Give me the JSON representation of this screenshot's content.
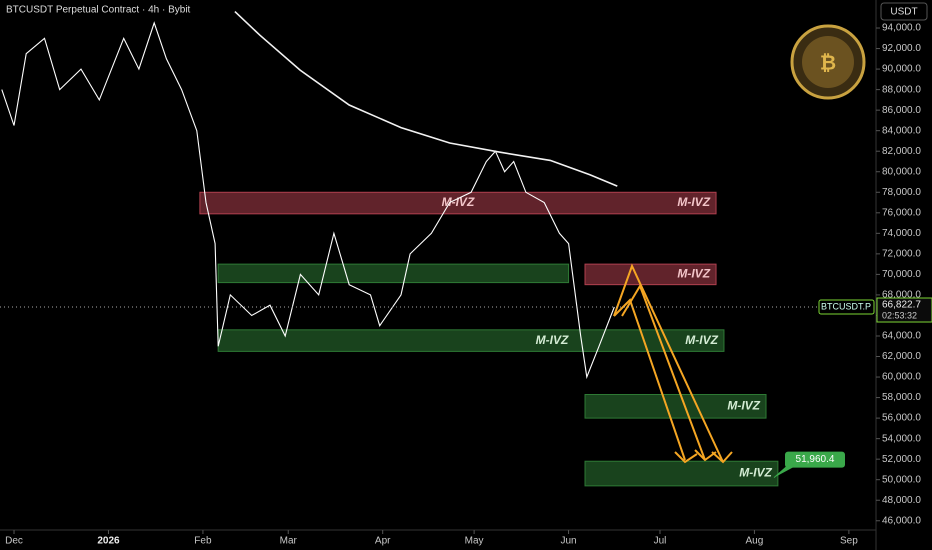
{
  "chart_data": {
    "type": "line",
    "title": "BTCUSDT Perpetual Contract · 4h · Bybit",
    "currency": "USDT",
    "xlim": [
      -4.6,
      282.9
    ],
    "ylim": [
      45100,
      96730
    ],
    "xticks": [
      {
        "value": 0,
        "label": "Dec"
      },
      {
        "value": 31,
        "label": "2026"
      },
      {
        "value": 62,
        "label": "Feb"
      },
      {
        "value": 90,
        "label": "Mar"
      },
      {
        "value": 121,
        "label": "Apr"
      },
      {
        "value": 151,
        "label": "May"
      },
      {
        "value": 182,
        "label": "Jun"
      },
      {
        "value": 212,
        "label": "Jul"
      },
      {
        "value": 243,
        "label": "Aug"
      },
      {
        "value": 274,
        "label": "Sep"
      }
    ],
    "yticks": [
      {
        "value": 46000,
        "label": "46,000.0"
      },
      {
        "value": 48000,
        "label": "48,000.0"
      },
      {
        "value": 50000,
        "label": "50,000.0"
      },
      {
        "value": 52000,
        "label": "52,000.0"
      },
      {
        "value": 54000,
        "label": "54,000.0"
      },
      {
        "value": 56000,
        "label": "56,000.0"
      },
      {
        "value": 58000,
        "label": "58,000.0"
      },
      {
        "value": 60000,
        "label": "60,000.0"
      },
      {
        "value": 62000,
        "label": "62,000.0"
      },
      {
        "value": 64000,
        "label": "64,000.0"
      },
      {
        "value": 66000,
        "label": "66,000.0"
      },
      {
        "value": 68000,
        "label": "68,000.0"
      },
      {
        "value": 70000,
        "label": "70,000.0"
      },
      {
        "value": 72000,
        "label": "72,000.0"
      },
      {
        "value": 74000,
        "label": "74,000.0"
      },
      {
        "value": 76000,
        "label": "76,000.0"
      },
      {
        "value": 78000,
        "label": "78,000.0"
      },
      {
        "value": 80000,
        "label": "80,000.0"
      },
      {
        "value": 82000,
        "label": "82,000.0"
      },
      {
        "value": 84000,
        "label": "84,000.0"
      },
      {
        "value": 86000,
        "label": "86,000.0"
      },
      {
        "value": 88000,
        "label": "88,000.0"
      },
      {
        "value": 90000,
        "label": "90,000.0"
      },
      {
        "value": 92000,
        "label": "92,000.0"
      },
      {
        "value": 94000,
        "label": "94,000.0"
      }
    ],
    "series": [
      {
        "name": "BTCUSDT.P",
        "color": "#ffffff",
        "x": [
          -4,
          0,
          4,
          10,
          15,
          22,
          28,
          36,
          41,
          46,
          50,
          55,
          60,
          63,
          66,
          67,
          71,
          78,
          84,
          89,
          94,
          100,
          105,
          110,
          117,
          120,
          127,
          130,
          137,
          143,
          150,
          155,
          158,
          161,
          164,
          168,
          174,
          179,
          182,
          186,
          188,
          192,
          197
        ],
        "values": [
          88000,
          84500,
          91500,
          93000,
          88000,
          90000,
          87000,
          93000,
          90000,
          94500,
          91000,
          88000,
          84000,
          77000,
          73000,
          63000,
          68000,
          66000,
          67000,
          64000,
          70000,
          68000,
          74000,
          69000,
          68000,
          65000,
          68000,
          72000,
          74000,
          77000,
          78000,
          81000,
          82000,
          80000,
          81000,
          78000,
          77000,
          74000,
          73000,
          64000,
          60000,
          63000,
          66822.7
        ]
      },
      {
        "color": "#f2f2f2",
        "x": [
          72.5,
          80.7,
          93.9,
          110,
          127,
          143,
          159.5,
          176,
          189,
          198
        ],
        "values": [
          95600,
          93300,
          89900,
          86500,
          84300,
          82800,
          81900,
          81100,
          79700,
          78600
        ]
      }
    ],
    "zones": [
      {
        "x": [
          61,
          230.4
        ],
        "y": [
          75900,
          78000
        ],
        "color": "#b0404f",
        "labels": [
          "M-IVZ",
          "M-IVZ"
        ]
      },
      {
        "x": [
          67,
          182
        ],
        "y": [
          69200,
          71000
        ],
        "color": "#2e7a35",
        "labels": []
      },
      {
        "x": [
          187.4,
          230.4
        ],
        "y": [
          69000,
          71000
        ],
        "color": "#b0404f",
        "labels": [
          "M-IVZ"
        ]
      },
      {
        "x": [
          67,
          233
        ],
        "y": [
          62500,
          64600
        ],
        "color": "#2e7a35",
        "labels": [
          "M-IVZ",
          "M-IVZ"
        ]
      },
      {
        "x": [
          187.4,
          246.8
        ],
        "y": [
          56000,
          58300
        ],
        "color": "#2e7a35",
        "labels": [
          "M-IVZ"
        ]
      },
      {
        "x": [
          187.4,
          250.7
        ],
        "y": [
          49400,
          51800
        ],
        "color": "#2e7a35",
        "labels": [
          "M-IVZ"
        ]
      }
    ],
    "last_price": {
      "value": 66822.7,
      "label": "66,822.7"
    },
    "countdown": "02:53:32",
    "target": {
      "value": 51960.4,
      "label": "51,960.4"
    }
  }
}
